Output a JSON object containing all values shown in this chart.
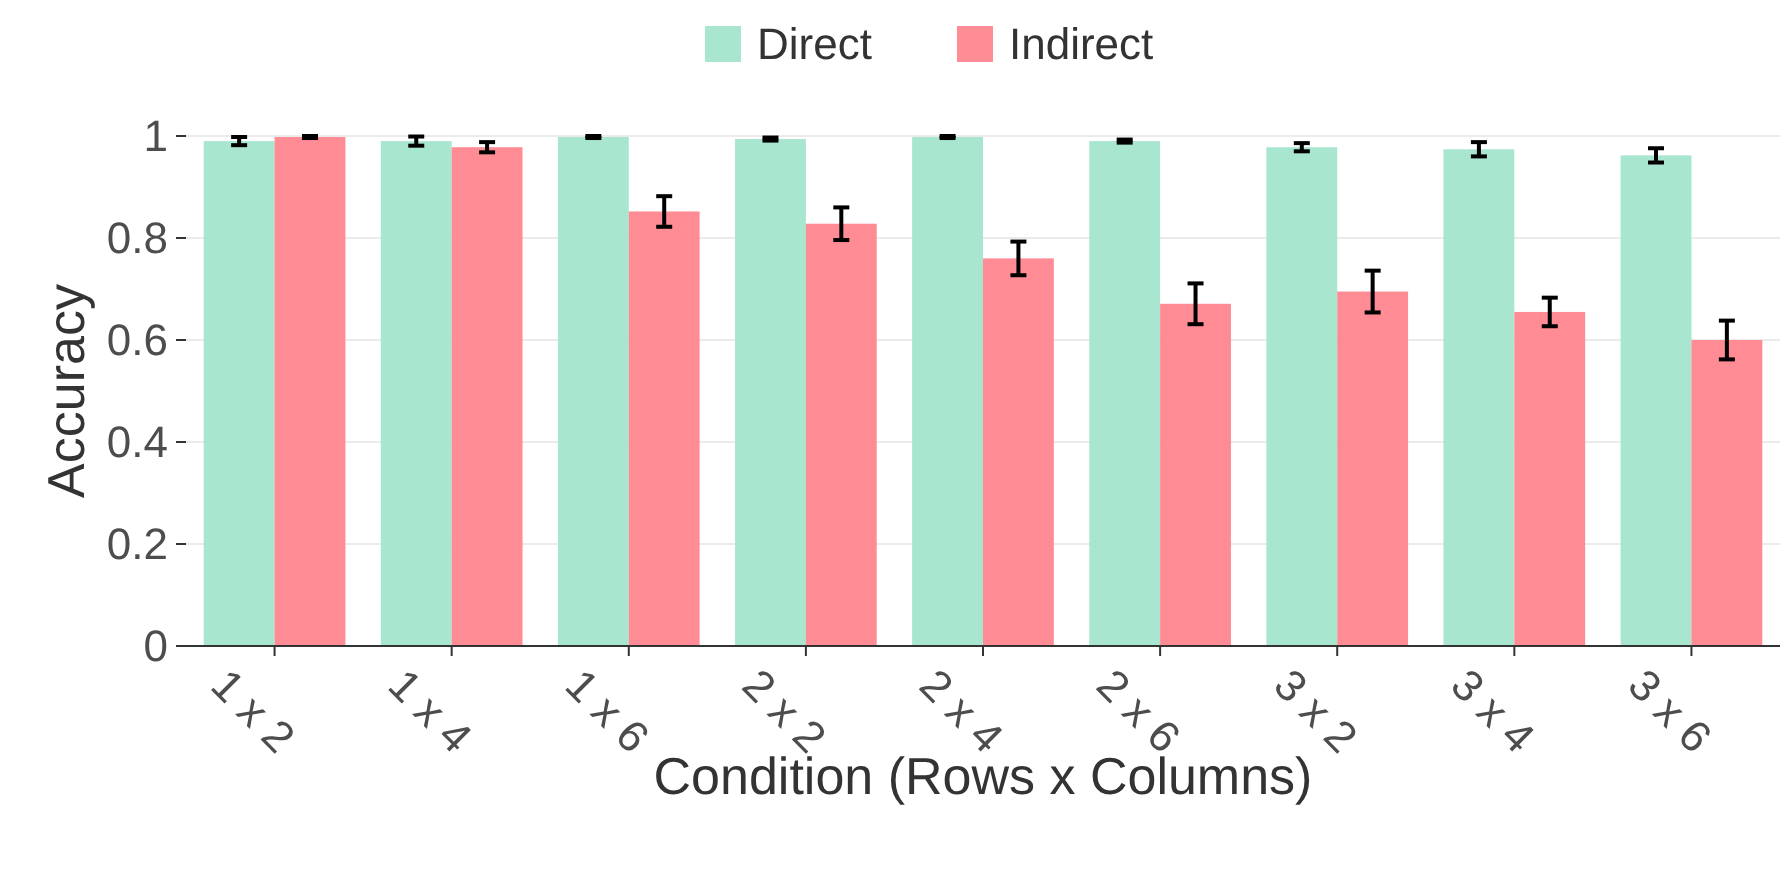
{
  "chart_data": {
    "type": "bar",
    "xlabel": "Condition (Rows x Columns)",
    "ylabel": "Accuracy",
    "categories": [
      "1 x 2",
      "1 x 4",
      "1 x 6",
      "2 x 2",
      "2 x 4",
      "2 x 6",
      "3 x 2",
      "3 x 4",
      "3 x 6"
    ],
    "series": [
      {
        "name": "Direct",
        "color": "#a8e6cf",
        "values": [
          0.99,
          0.99,
          0.998,
          0.994,
          0.998,
          0.99,
          0.978,
          0.974,
          0.962
        ],
        "errors": [
          0.008,
          0.009,
          0.002,
          0.003,
          0.002,
          0.003,
          0.008,
          0.014,
          0.014
        ]
      },
      {
        "name": "Indirect",
        "color": "#ff8b94",
        "values": [
          0.998,
          0.978,
          0.852,
          0.828,
          0.76,
          0.671,
          0.695,
          0.655,
          0.6
        ],
        "errors": [
          0.002,
          0.01,
          0.03,
          0.032,
          0.033,
          0.04,
          0.041,
          0.028,
          0.038
        ]
      }
    ],
    "ylim": [
      0,
      1
    ],
    "yticks": [
      0,
      0.2,
      0.4,
      0.6,
      0.8,
      1
    ],
    "grid": "y",
    "legend": "top"
  }
}
